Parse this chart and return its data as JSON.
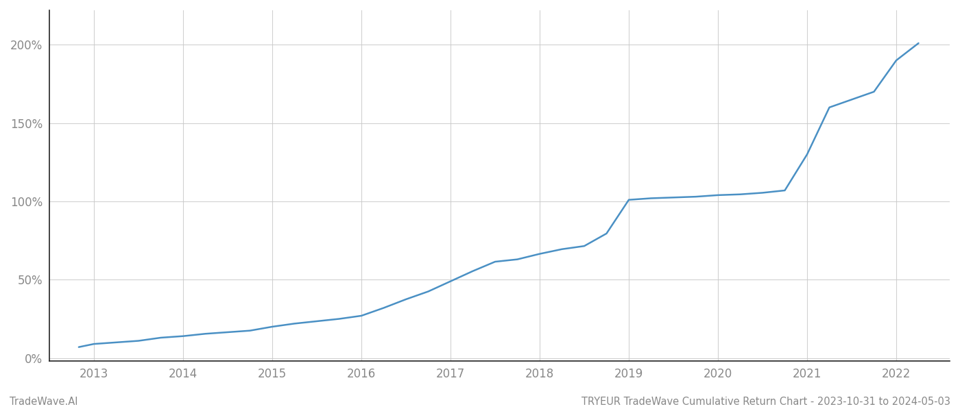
{
  "title": "TRYEUR TradeWave Cumulative Return Chart - 2023-10-31 to 2024-05-03",
  "watermark": "TradeWave.AI",
  "line_color": "#4a90c4",
  "background_color": "#ffffff",
  "grid_color": "#cccccc",
  "x_years": [
    2013,
    2014,
    2015,
    2016,
    2017,
    2018,
    2019,
    2020,
    2021,
    2022
  ],
  "x_data": [
    2012.83,
    2013.0,
    2013.25,
    2013.5,
    2013.75,
    2014.0,
    2014.25,
    2014.5,
    2014.75,
    2015.0,
    2015.25,
    2015.5,
    2015.75,
    2016.0,
    2016.25,
    2016.5,
    2016.75,
    2017.0,
    2017.25,
    2017.5,
    2017.75,
    2018.0,
    2018.25,
    2018.5,
    2018.75,
    2019.0,
    2019.25,
    2019.5,
    2019.75,
    2020.0,
    2020.25,
    2020.5,
    2020.75,
    2021.0,
    2021.25,
    2021.5,
    2021.75,
    2022.0,
    2022.25
  ],
  "y_data": [
    0.07,
    0.09,
    0.1,
    0.11,
    0.13,
    0.14,
    0.155,
    0.165,
    0.175,
    0.2,
    0.22,
    0.235,
    0.25,
    0.27,
    0.32,
    0.375,
    0.425,
    0.49,
    0.555,
    0.615,
    0.63,
    0.665,
    0.695,
    0.715,
    0.795,
    1.01,
    1.02,
    1.025,
    1.03,
    1.04,
    1.045,
    1.055,
    1.07,
    1.3,
    1.6,
    1.65,
    1.7,
    1.9,
    2.01
  ],
  "yticks": [
    0.0,
    0.5,
    1.0,
    1.5,
    2.0
  ],
  "ytick_labels": [
    "0%",
    "50%",
    "100%",
    "150%",
    "200%"
  ],
  "xlim": [
    2012.5,
    2022.6
  ],
  "ylim": [
    -0.02,
    2.22
  ],
  "title_fontsize": 10.5,
  "watermark_fontsize": 10.5,
  "tick_fontsize": 12,
  "tick_color": "#888888",
  "spine_color": "#222222",
  "line_width": 1.8
}
